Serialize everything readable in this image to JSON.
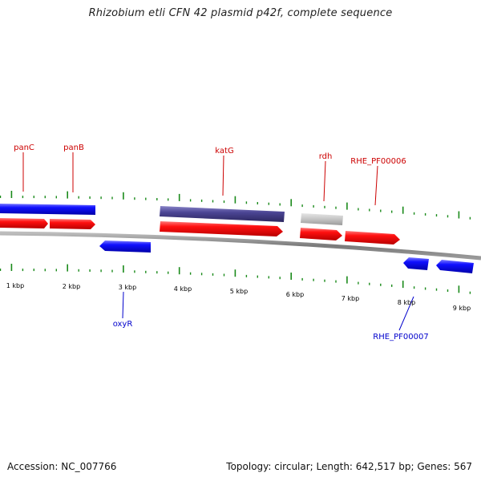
{
  "title": "Rhizobium etli CFN 42 plasmid p42f, complete sequence",
  "footer": {
    "accession": "Accession: NC_007766",
    "summary": "Topology: circular; Length: 642,517 bp; Genes: 567"
  },
  "kbp_labels": [
    "1 kbp",
    "2 kbp",
    "3 kbp",
    "4 kbp",
    "5 kbp",
    "6 kbp",
    "7 kbp",
    "8 kbp",
    "9 kbp"
  ],
  "gene_labels": {
    "panC": "panC",
    "panB": "panB",
    "katG": "katG",
    "rdh": "rdh",
    "rhe_pf00006": "RHE_PF00006",
    "oxyR": "oxyR",
    "rhe_pf00007": "RHE_PF00007"
  },
  "colors": {
    "forward_cds": "#ff0000",
    "reverse_cds": "#0000ff",
    "highlight_cds": "#4b4594",
    "other_feature": "#c0c0c0",
    "tick": "#1a8a1a",
    "forward_label": "#cc0000",
    "reverse_label": "#0000cc",
    "backbone": "#808080"
  }
}
